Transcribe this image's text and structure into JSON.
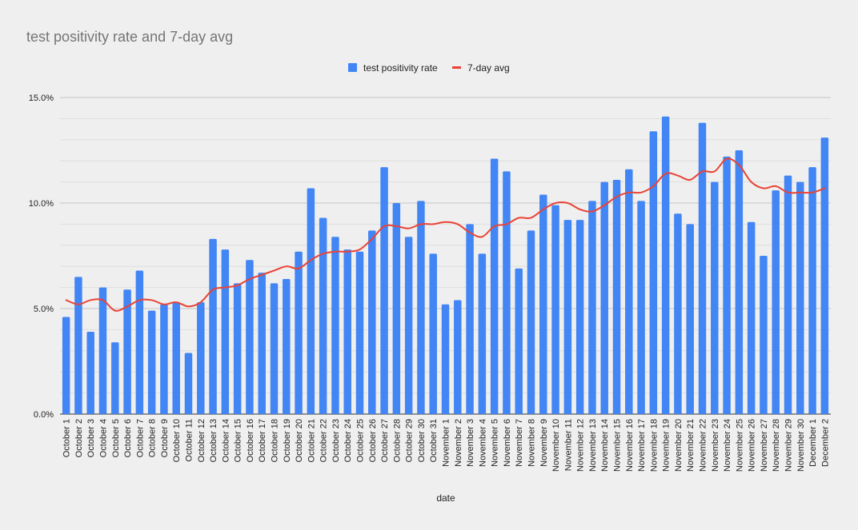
{
  "chart_data": {
    "type": "bar",
    "title": "test positivity rate and 7-day avg",
    "xlabel": "date",
    "ylabel": "",
    "ylim": [
      0,
      15
    ],
    "yticks": [
      0,
      5,
      10,
      15
    ],
    "ytick_labels": [
      "0.0%",
      "5.0%",
      "10.0%",
      "15.0%"
    ],
    "legend": {
      "position": "top"
    },
    "categories": [
      "October 1",
      "October 2",
      "October 3",
      "October 4",
      "October 5",
      "October 6",
      "October 7",
      "October 8",
      "October 9",
      "October 10",
      "October 11",
      "October 12",
      "October 13",
      "October 14",
      "October 15",
      "October 16",
      "October 17",
      "October 18",
      "October 19",
      "October 20",
      "October 21",
      "October 22",
      "October 23",
      "October 24",
      "October 25",
      "October 26",
      "October 27",
      "October 28",
      "October 29",
      "October 30",
      "October 31",
      "November 1",
      "November 2",
      "November 3",
      "November 4",
      "November 5",
      "November 6",
      "November 7",
      "November 8",
      "November 9",
      "November 10",
      "November 11",
      "November 12",
      "November 13",
      "November 14",
      "November 15",
      "November 16",
      "November 17",
      "November 18",
      "November 19",
      "November 20",
      "November 21",
      "November 22",
      "November 23",
      "November 24",
      "November 25",
      "November 26",
      "November 27",
      "November 28",
      "November 29",
      "November 30",
      "December 1",
      "December 2"
    ],
    "series": [
      {
        "name": "test positivity rate",
        "kind": "bar",
        "color": "#4285f4",
        "values": [
          4.6,
          6.5,
          3.9,
          6.0,
          3.4,
          5.9,
          6.8,
          4.9,
          5.2,
          5.3,
          2.9,
          5.3,
          8.3,
          7.8,
          6.2,
          7.3,
          6.7,
          6.2,
          6.4,
          7.7,
          10.7,
          9.3,
          8.4,
          7.8,
          7.7,
          8.7,
          11.7,
          10.0,
          8.4,
          10.1,
          7.6,
          5.2,
          5.4,
          9.0,
          7.6,
          12.1,
          11.5,
          6.9,
          8.7,
          10.4,
          9.9,
          9.2,
          9.2,
          10.1,
          11.0,
          11.1,
          11.6,
          10.1,
          13.4,
          14.1,
          9.5,
          9.0,
          13.8,
          11.0,
          12.2,
          12.5,
          9.1,
          7.5,
          10.6,
          11.3,
          11.0,
          11.7,
          13.1
        ]
      },
      {
        "name": "7-day avg",
        "kind": "line",
        "color": "#ea4335",
        "values": [
          5.4,
          5.2,
          5.4,
          5.4,
          4.9,
          5.1,
          5.4,
          5.4,
          5.2,
          5.3,
          5.1,
          5.3,
          5.9,
          6.0,
          6.1,
          6.4,
          6.6,
          6.8,
          7.0,
          6.9,
          7.3,
          7.6,
          7.7,
          7.7,
          7.8,
          8.3,
          8.9,
          8.9,
          8.8,
          9.0,
          9.0,
          9.1,
          9.0,
          8.6,
          8.4,
          8.9,
          9.0,
          9.3,
          9.3,
          9.7,
          10.0,
          10.0,
          9.7,
          9.6,
          9.9,
          10.3,
          10.5,
          10.5,
          10.8,
          11.4,
          11.3,
          11.1,
          11.5,
          11.5,
          12.1,
          11.8,
          11.0,
          10.7,
          10.8,
          10.5,
          10.5,
          10.5,
          10.7
        ]
      }
    ]
  }
}
